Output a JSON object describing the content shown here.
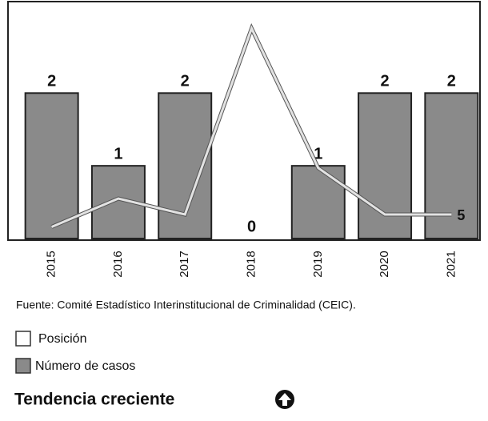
{
  "chart_data": {
    "type": "bar",
    "categories": [
      "2015",
      "2016",
      "2017",
      "2018",
      "2019",
      "2020",
      "2021"
    ],
    "series": [
      {
        "name": "Número de casos",
        "type": "bar",
        "color": "#8a8a8a",
        "values": [
          2,
          1,
          2,
          0,
          1,
          2,
          2
        ]
      },
      {
        "name": "Posición",
        "type": "line",
        "color": "#e2e2e2",
        "values": [
          0.16,
          0.55,
          0.33,
          2.89,
          0.97,
          0.33,
          0.33
        ]
      }
    ],
    "ylim": [
      0,
      2.95
    ],
    "annotations": [
      {
        "text": "5",
        "category": "2021"
      }
    ],
    "source": "Fuente: Comité Estadístico Interinstitucional de Criminalidad (CEIC).",
    "trend": "Tendencia creciente"
  }
}
